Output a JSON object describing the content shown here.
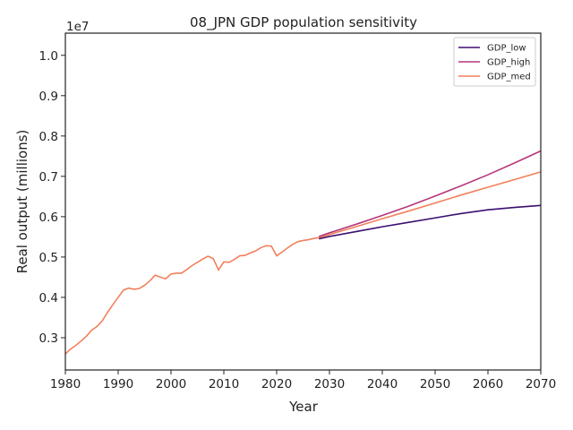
{
  "chart_data": {
    "type": "line",
    "title": "08_JPN GDP population sensitivity",
    "xlabel": "Year",
    "ylabel": "Real output (millions)",
    "y_offset_label": "1e7",
    "xlim": [
      1980,
      2070
    ],
    "ylim": [
      0.22,
      1.055
    ],
    "x_ticks": [
      1980,
      1990,
      2000,
      2010,
      2020,
      2030,
      2040,
      2050,
      2060,
      2070
    ],
    "y_ticks": [
      0.3,
      0.4,
      0.5,
      0.6,
      0.7,
      0.8,
      0.9,
      1.0
    ],
    "y_tick_labels": [
      "0.3",
      "0.4",
      "0.5",
      "0.6",
      "0.7",
      "0.8",
      "0.9",
      "1.0"
    ],
    "grid": false,
    "legend_position": "top-right",
    "series": [
      {
        "name": "GDP_low",
        "color": "#3b0f70",
        "x": [
          2028,
          2030,
          2035,
          2040,
          2045,
          2050,
          2055,
          2060,
          2065,
          2070
        ],
        "y": [
          0.545,
          0.551,
          0.563,
          0.575,
          0.586,
          0.597,
          0.608,
          0.617,
          0.623,
          0.628
        ]
      },
      {
        "name": "GDP_high",
        "color": "#b5367a",
        "x": [
          2028,
          2030,
          2035,
          2040,
          2045,
          2050,
          2055,
          2060,
          2065,
          2070
        ],
        "y": [
          0.551,
          0.56,
          0.581,
          0.603,
          0.626,
          0.651,
          0.677,
          0.704,
          0.733,
          0.763
        ]
      },
      {
        "name": "GDP_med",
        "color": "#f1805c",
        "x": [
          1980,
          1981,
          1982,
          1983,
          1984,
          1985,
          1986,
          1987,
          1988,
          1989,
          1990,
          1991,
          1992,
          1993,
          1994,
          1995,
          1996,
          1997,
          1998,
          1999,
          2000,
          2001,
          2002,
          2003,
          2004,
          2005,
          2006,
          2007,
          2008,
          2009,
          2010,
          2011,
          2012,
          2013,
          2014,
          2015,
          2016,
          2017,
          2018,
          2019,
          2020,
          2021,
          2022,
          2023,
          2024,
          2025,
          2026,
          2027,
          2028,
          2030,
          2035,
          2040,
          2045,
          2050,
          2055,
          2060,
          2065,
          2070
        ],
        "y": [
          0.26,
          0.272,
          0.281,
          0.292,
          0.304,
          0.319,
          0.328,
          0.342,
          0.363,
          0.382,
          0.4,
          0.418,
          0.423,
          0.42,
          0.422,
          0.43,
          0.441,
          0.455,
          0.45,
          0.446,
          0.458,
          0.46,
          0.46,
          0.469,
          0.479,
          0.487,
          0.495,
          0.502,
          0.496,
          0.468,
          0.488,
          0.487,
          0.494,
          0.503,
          0.504,
          0.51,
          0.515,
          0.523,
          0.528,
          0.527,
          0.503,
          0.512,
          0.522,
          0.531,
          0.538,
          0.541,
          0.543,
          0.546,
          0.548,
          0.556,
          0.575,
          0.595,
          0.614,
          0.634,
          0.654,
          0.673,
          0.692,
          0.711
        ]
      }
    ]
  }
}
